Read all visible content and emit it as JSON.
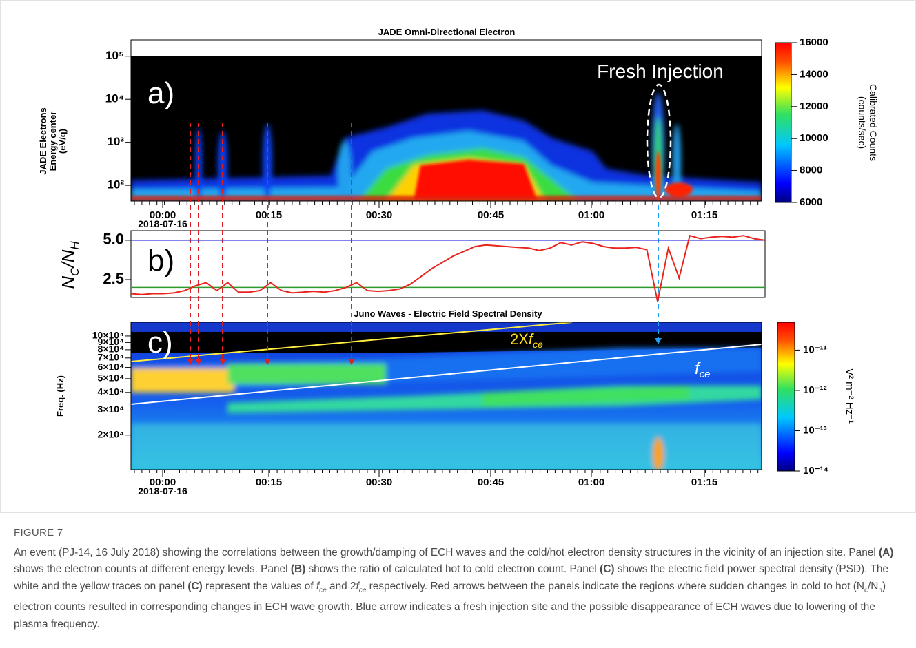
{
  "chart_data": [
    {
      "type": "heatmap",
      "title": "JADE Omni-Directional Electron",
      "panel_label": "a)",
      "annotation": "Fresh Injection",
      "ylabel": [
        "JADE Electrons",
        "Energy center",
        "(eV/q)"
      ],
      "ylog": true,
      "ylim": [
        43,
        240000
      ],
      "yticks": [
        {
          "value": 100,
          "label": "10²"
        },
        {
          "value": 1000,
          "label": "10³"
        },
        {
          "value": 10000,
          "label": "10⁴"
        },
        {
          "value": 100000,
          "label": "10⁵"
        }
      ],
      "xtick_labels": [
        "00:00",
        "00:15",
        "00:30",
        "00:45",
        "01:00",
        "01:15"
      ],
      "date": "2018-07-16",
      "colorbar": {
        "label": [
          "Calibrated Counts",
          "(counts/sec)"
        ],
        "clim": [
          6000,
          16000
        ],
        "ticks": [
          6000,
          8000,
          10000,
          12000,
          14000,
          16000
        ]
      }
    },
    {
      "type": "line",
      "panel_label": "b)",
      "ylabel": [
        "N",
        "C",
        "/N",
        "H"
      ],
      "ylim": [
        1.36,
        5.61
      ],
      "yticks": [
        2.5,
        {
          "value": 5,
          "label": "5.0"
        }
      ],
      "reference_lines": [
        {
          "value": 5,
          "color": "#3b3bdf"
        },
        {
          "value": 2,
          "color": "#2e9a2e"
        }
      ],
      "color": "#e8241c",
      "values": [
        1.6,
        1.55,
        1.6,
        1.6,
        1.65,
        1.8,
        2.1,
        2.3,
        1.8,
        2.3,
        1.7,
        1.7,
        1.8,
        2.3,
        1.8,
        1.65,
        1.7,
        1.75,
        1.7,
        1.8,
        2.0,
        2.3,
        1.8,
        1.75,
        1.8,
        1.9,
        2.2,
        2.7,
        3.2,
        3.6,
        4.0,
        4.3,
        4.6,
        4.7,
        4.65,
        4.6,
        4.55,
        4.5,
        4.35,
        4.5,
        4.85,
        4.7,
        4.9,
        4.8,
        4.6,
        4.5,
        4.5,
        4.55,
        4.4,
        1.1,
        4.5,
        2.6,
        5.3,
        5.1,
        5.2,
        5.25,
        5.2,
        5.3,
        5.1,
        5.0
      ]
    },
    {
      "type": "heatmap",
      "title": "Juno Waves - Electric Field Spectral Density",
      "panel_label": "c)",
      "ylabel": "Freq. (Hz)",
      "ylog": true,
      "ylim": [
        11400,
        125000
      ],
      "yticks": [
        {
          "value": 20000,
          "label": "2×10⁴"
        },
        {
          "value": 30000,
          "label": "3×10⁴"
        },
        {
          "value": 40000,
          "label": "4×10⁴"
        },
        {
          "value": 50000,
          "label": "5×10⁴"
        },
        {
          "value": 60000,
          "label": "6×10⁴"
        },
        {
          "value": 70000,
          "label": "7×10⁴"
        },
        {
          "value": 80000,
          "label": "8×10⁴"
        },
        {
          "value": 90000,
          "label": "9×10⁴"
        },
        {
          "value": 100000,
          "label": "10×10⁴"
        }
      ],
      "annotations": [
        [
          "2X",
          "f",
          "ce"
        ],
        [
          "f",
          "ce"
        ]
      ],
      "xtick_labels": [
        "00:00",
        "00:15",
        "00:30",
        "00:45",
        "01:00",
        "01:15"
      ],
      "date": "2018-07-16",
      "colorbar": {
        "label": "V² m⁻² Hz⁻¹",
        "log": true,
        "clim": [
          1e-14,
          4.9e-11
        ],
        "ticks": [
          {
            "value": 1e-14,
            "label": "10⁻¹⁴"
          },
          {
            "value": 1e-13,
            "label": "10⁻¹³"
          },
          {
            "value": 1e-12,
            "label": "10⁻¹²"
          },
          {
            "value": 1e-11,
            "label": "10⁻¹¹"
          }
        ]
      }
    }
  ],
  "caption": {
    "label": "FIGURE 7",
    "runs": [
      "An event (PJ-14, 16 July 2018) showing the correlations between the growth/damping of ECH waves and the cold/hot electron density structures in the vicinity of an injection site. Panel ",
      "(A)",
      " shows the electron counts at different energy levels. Panel ",
      "(B)",
      " shows the ratio of calculated hot to cold electron count. Panel ",
      "(C)",
      " shows the electric field power spectral density (PSD). The white and the yellow traces on panel ",
      "(C)",
      " represent the values of ",
      "f",
      "ce",
      " and 2",
      "f",
      "ce",
      " respectively. Red arrows between the panels indicate the regions where sudden changes in cold to hot (N",
      "c",
      "/N",
      "h",
      ") electron counts resulted in corresponding changes in ECH wave growth. Blue arrow indicates a fresh injection site and the possible disappearance of ECH waves due to lowering of the plasma frequency."
    ]
  }
}
